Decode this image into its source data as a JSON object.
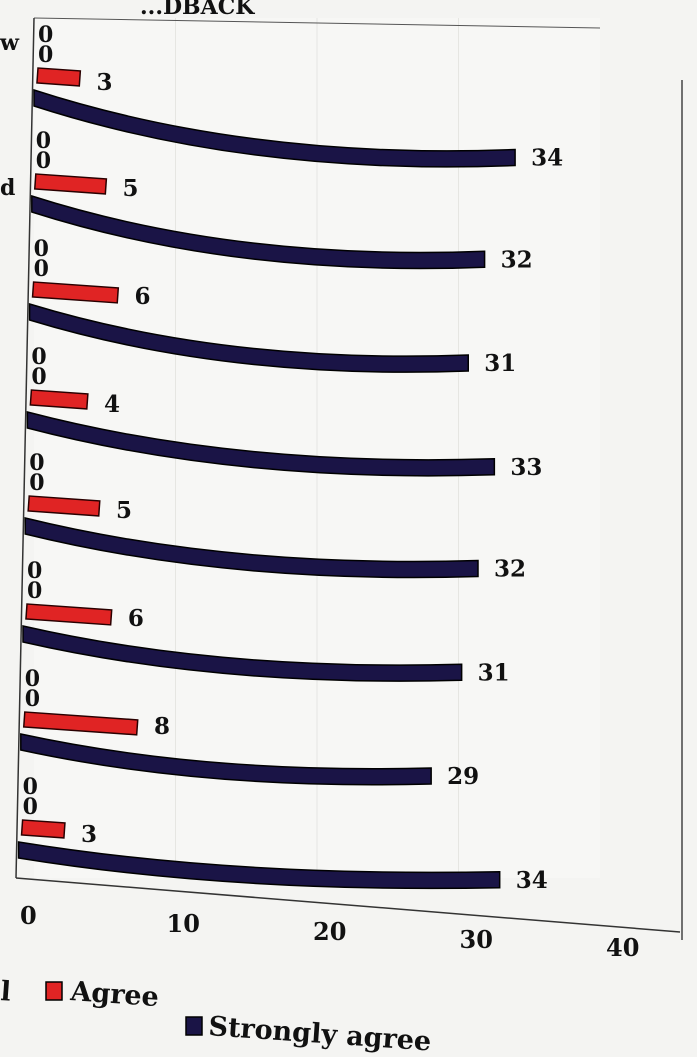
{
  "chart_data": {
    "type": "bar",
    "orientation": "horizontal",
    "title": "...DBACK",
    "category_labels_visible": [
      "w",
      "d"
    ],
    "series": [
      {
        "name": "",
        "color": "#e02424",
        "values": [
          0,
          0,
          0,
          0,
          0,
          0,
          0,
          0,
          0
        ]
      },
      {
        "name": "",
        "color": "#e02424",
        "values": [
          0,
          0,
          0,
          0,
          0,
          0,
          0,
          0,
          0
        ]
      },
      {
        "name": "Agree",
        "color": "#e02424",
        "values": [
          3,
          5,
          6,
          4,
          5,
          6,
          8,
          3
        ]
      },
      {
        "name": "Strongly agree",
        "color": "#1a1446",
        "values": [
          34,
          32,
          31,
          33,
          32,
          31,
          29,
          34
        ]
      }
    ],
    "xlim": [
      0,
      40
    ],
    "xticks": [
      "0",
      "10",
      "20",
      "30",
      "40"
    ],
    "legend": {
      "position": "bottom",
      "items": [
        {
          "label": "l",
          "color": ""
        },
        {
          "label": "Agree",
          "color": "#e02424"
        },
        {
          "label": "Strongly agree",
          "color": "#1a1446"
        }
      ]
    },
    "grid": true
  }
}
